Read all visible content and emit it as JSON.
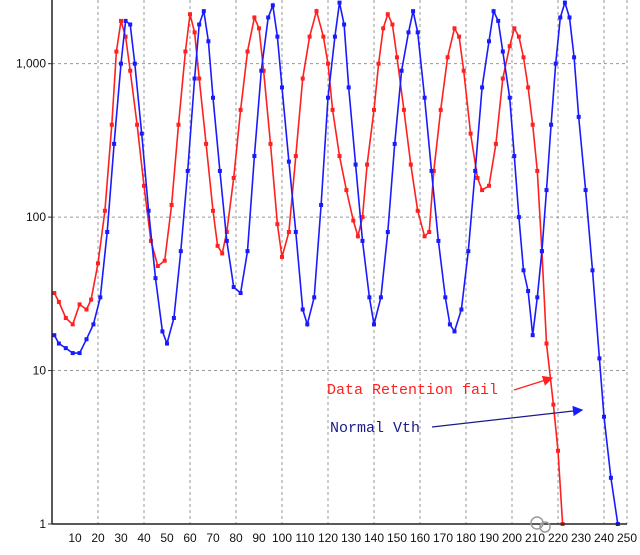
{
  "chart_data": {
    "type": "line",
    "title": "",
    "xlabel": "",
    "ylabel": "",
    "y_scale": "log",
    "ylim": [
      1,
      2600
    ],
    "xlim": [
      0,
      250
    ],
    "grid": true,
    "x_ticks": [
      "10",
      "20",
      "30",
      "40",
      "50",
      "60",
      "70",
      "80",
      "90",
      "100",
      "110",
      "120",
      "130",
      "140",
      "150",
      "160",
      "170",
      "180",
      "190",
      "200",
      "210",
      "220",
      "230",
      "240",
      "250"
    ],
    "y_ticks": [
      "1",
      "10",
      "100",
      "1,000"
    ],
    "series": [
      {
        "name": "Data Retention fail",
        "color": "#ff2020",
        "points": [
          [
            1,
            32
          ],
          [
            3,
            28
          ],
          [
            6,
            22
          ],
          [
            9,
            20
          ],
          [
            12,
            27
          ],
          [
            15,
            25
          ],
          [
            17,
            29
          ],
          [
            20,
            50
          ],
          [
            23,
            110
          ],
          [
            26,
            400
          ],
          [
            28,
            1200
          ],
          [
            30,
            1900
          ],
          [
            32,
            1500
          ],
          [
            34,
            900
          ],
          [
            37,
            400
          ],
          [
            40,
            160
          ],
          [
            43,
            70
          ],
          [
            46,
            48
          ],
          [
            49,
            52
          ],
          [
            52,
            120
          ],
          [
            55,
            400
          ],
          [
            58,
            1200
          ],
          [
            60,
            2100
          ],
          [
            62,
            1600
          ],
          [
            64,
            800
          ],
          [
            67,
            300
          ],
          [
            70,
            110
          ],
          [
            72,
            65
          ],
          [
            74,
            58
          ],
          [
            76,
            80
          ],
          [
            79,
            180
          ],
          [
            82,
            500
          ],
          [
            85,
            1200
          ],
          [
            88,
            2000
          ],
          [
            90,
            1700
          ],
          [
            92,
            900
          ],
          [
            95,
            300
          ],
          [
            98,
            90
          ],
          [
            100,
            55
          ],
          [
            103,
            80
          ],
          [
            106,
            250
          ],
          [
            109,
            800
          ],
          [
            112,
            1500
          ],
          [
            115,
            2200
          ],
          [
            118,
            1500
          ],
          [
            120,
            1000
          ],
          [
            122,
            500
          ],
          [
            125,
            250
          ],
          [
            128,
            150
          ],
          [
            131,
            95
          ],
          [
            133,
            75
          ],
          [
            135,
            100
          ],
          [
            137,
            220
          ],
          [
            140,
            500
          ],
          [
            142,
            1000
          ],
          [
            144,
            1700
          ],
          [
            146,
            2100
          ],
          [
            148,
            1800
          ],
          [
            150,
            1100
          ],
          [
            153,
            500
          ],
          [
            156,
            220
          ],
          [
            159,
            110
          ],
          [
            162,
            75
          ],
          [
            164,
            80
          ],
          [
            166,
            200
          ],
          [
            169,
            500
          ],
          [
            172,
            1100
          ],
          [
            175,
            1700
          ],
          [
            177,
            1500
          ],
          [
            179,
            900
          ],
          [
            182,
            350
          ],
          [
            185,
            180
          ],
          [
            187,
            150
          ],
          [
            190,
            160
          ],
          [
            193,
            300
          ],
          [
            196,
            800
          ],
          [
            199,
            1300
          ],
          [
            201,
            1700
          ],
          [
            203,
            1500
          ],
          [
            205,
            1100
          ],
          [
            207,
            700
          ],
          [
            209,
            400
          ],
          [
            211,
            200
          ],
          [
            213,
            60
          ],
          [
            215,
            15
          ],
          [
            218,
            6
          ],
          [
            220,
            3
          ],
          [
            222,
            1
          ]
        ]
      },
      {
        "name": "Normal Vth",
        "color": "#1a1aff",
        "points": [
          [
            1,
            17
          ],
          [
            3,
            15
          ],
          [
            6,
            14
          ],
          [
            9,
            13
          ],
          [
            12,
            13
          ],
          [
            15,
            16
          ],
          [
            18,
            20
          ],
          [
            21,
            30
          ],
          [
            24,
            80
          ],
          [
            27,
            300
          ],
          [
            30,
            1000
          ],
          [
            32,
            1900
          ],
          [
            34,
            1800
          ],
          [
            36,
            1000
          ],
          [
            39,
            350
          ],
          [
            42,
            110
          ],
          [
            45,
            40
          ],
          [
            48,
            18
          ],
          [
            50,
            15
          ],
          [
            53,
            22
          ],
          [
            56,
            60
          ],
          [
            59,
            200
          ],
          [
            62,
            800
          ],
          [
            64,
            1800
          ],
          [
            66,
            2200
          ],
          [
            68,
            1400
          ],
          [
            70,
            600
          ],
          [
            73,
            200
          ],
          [
            76,
            70
          ],
          [
            79,
            35
          ],
          [
            82,
            32
          ],
          [
            85,
            60
          ],
          [
            88,
            250
          ],
          [
            91,
            900
          ],
          [
            94,
            2000
          ],
          [
            96,
            2400
          ],
          [
            98,
            1500
          ],
          [
            100,
            700
          ],
          [
            103,
            230
          ],
          [
            106,
            80
          ],
          [
            109,
            25
          ],
          [
            111,
            20
          ],
          [
            114,
            30
          ],
          [
            117,
            120
          ],
          [
            120,
            600
          ],
          [
            123,
            1500
          ],
          [
            125,
            2500
          ],
          [
            127,
            1800
          ],
          [
            129,
            700
          ],
          [
            132,
            220
          ],
          [
            135,
            70
          ],
          [
            138,
            30
          ],
          [
            140,
            20
          ],
          [
            143,
            30
          ],
          [
            146,
            80
          ],
          [
            149,
            300
          ],
          [
            152,
            900
          ],
          [
            155,
            1600
          ],
          [
            157,
            2200
          ],
          [
            159,
            1600
          ],
          [
            162,
            600
          ],
          [
            165,
            200
          ],
          [
            168,
            70
          ],
          [
            171,
            30
          ],
          [
            173,
            20
          ],
          [
            175,
            18
          ],
          [
            178,
            25
          ],
          [
            181,
            60
          ],
          [
            184,
            200
          ],
          [
            187,
            700
          ],
          [
            190,
            1400
          ],
          [
            192,
            2200
          ],
          [
            194,
            1900
          ],
          [
            196,
            1200
          ],
          [
            199,
            600
          ],
          [
            201,
            250
          ],
          [
            203,
            100
          ],
          [
            205,
            45
          ],
          [
            207,
            33
          ],
          [
            209,
            17
          ],
          [
            211,
            30
          ],
          [
            213,
            60
          ],
          [
            215,
            150
          ],
          [
            217,
            400
          ],
          [
            219,
            1000
          ],
          [
            221,
            2000
          ],
          [
            223,
            2500
          ],
          [
            225,
            2000
          ],
          [
            227,
            1100
          ],
          [
            229,
            450
          ],
          [
            232,
            150
          ],
          [
            235,
            45
          ],
          [
            238,
            12
          ],
          [
            240,
            5
          ],
          [
            243,
            2
          ],
          [
            246,
            1
          ]
        ]
      }
    ],
    "annotations": [
      {
        "text": "Data Retention fail",
        "color": "#ff2020",
        "target_series": 0
      },
      {
        "text": "Normal Vth",
        "color": "#1a1a8a",
        "target_series": 1
      }
    ]
  }
}
